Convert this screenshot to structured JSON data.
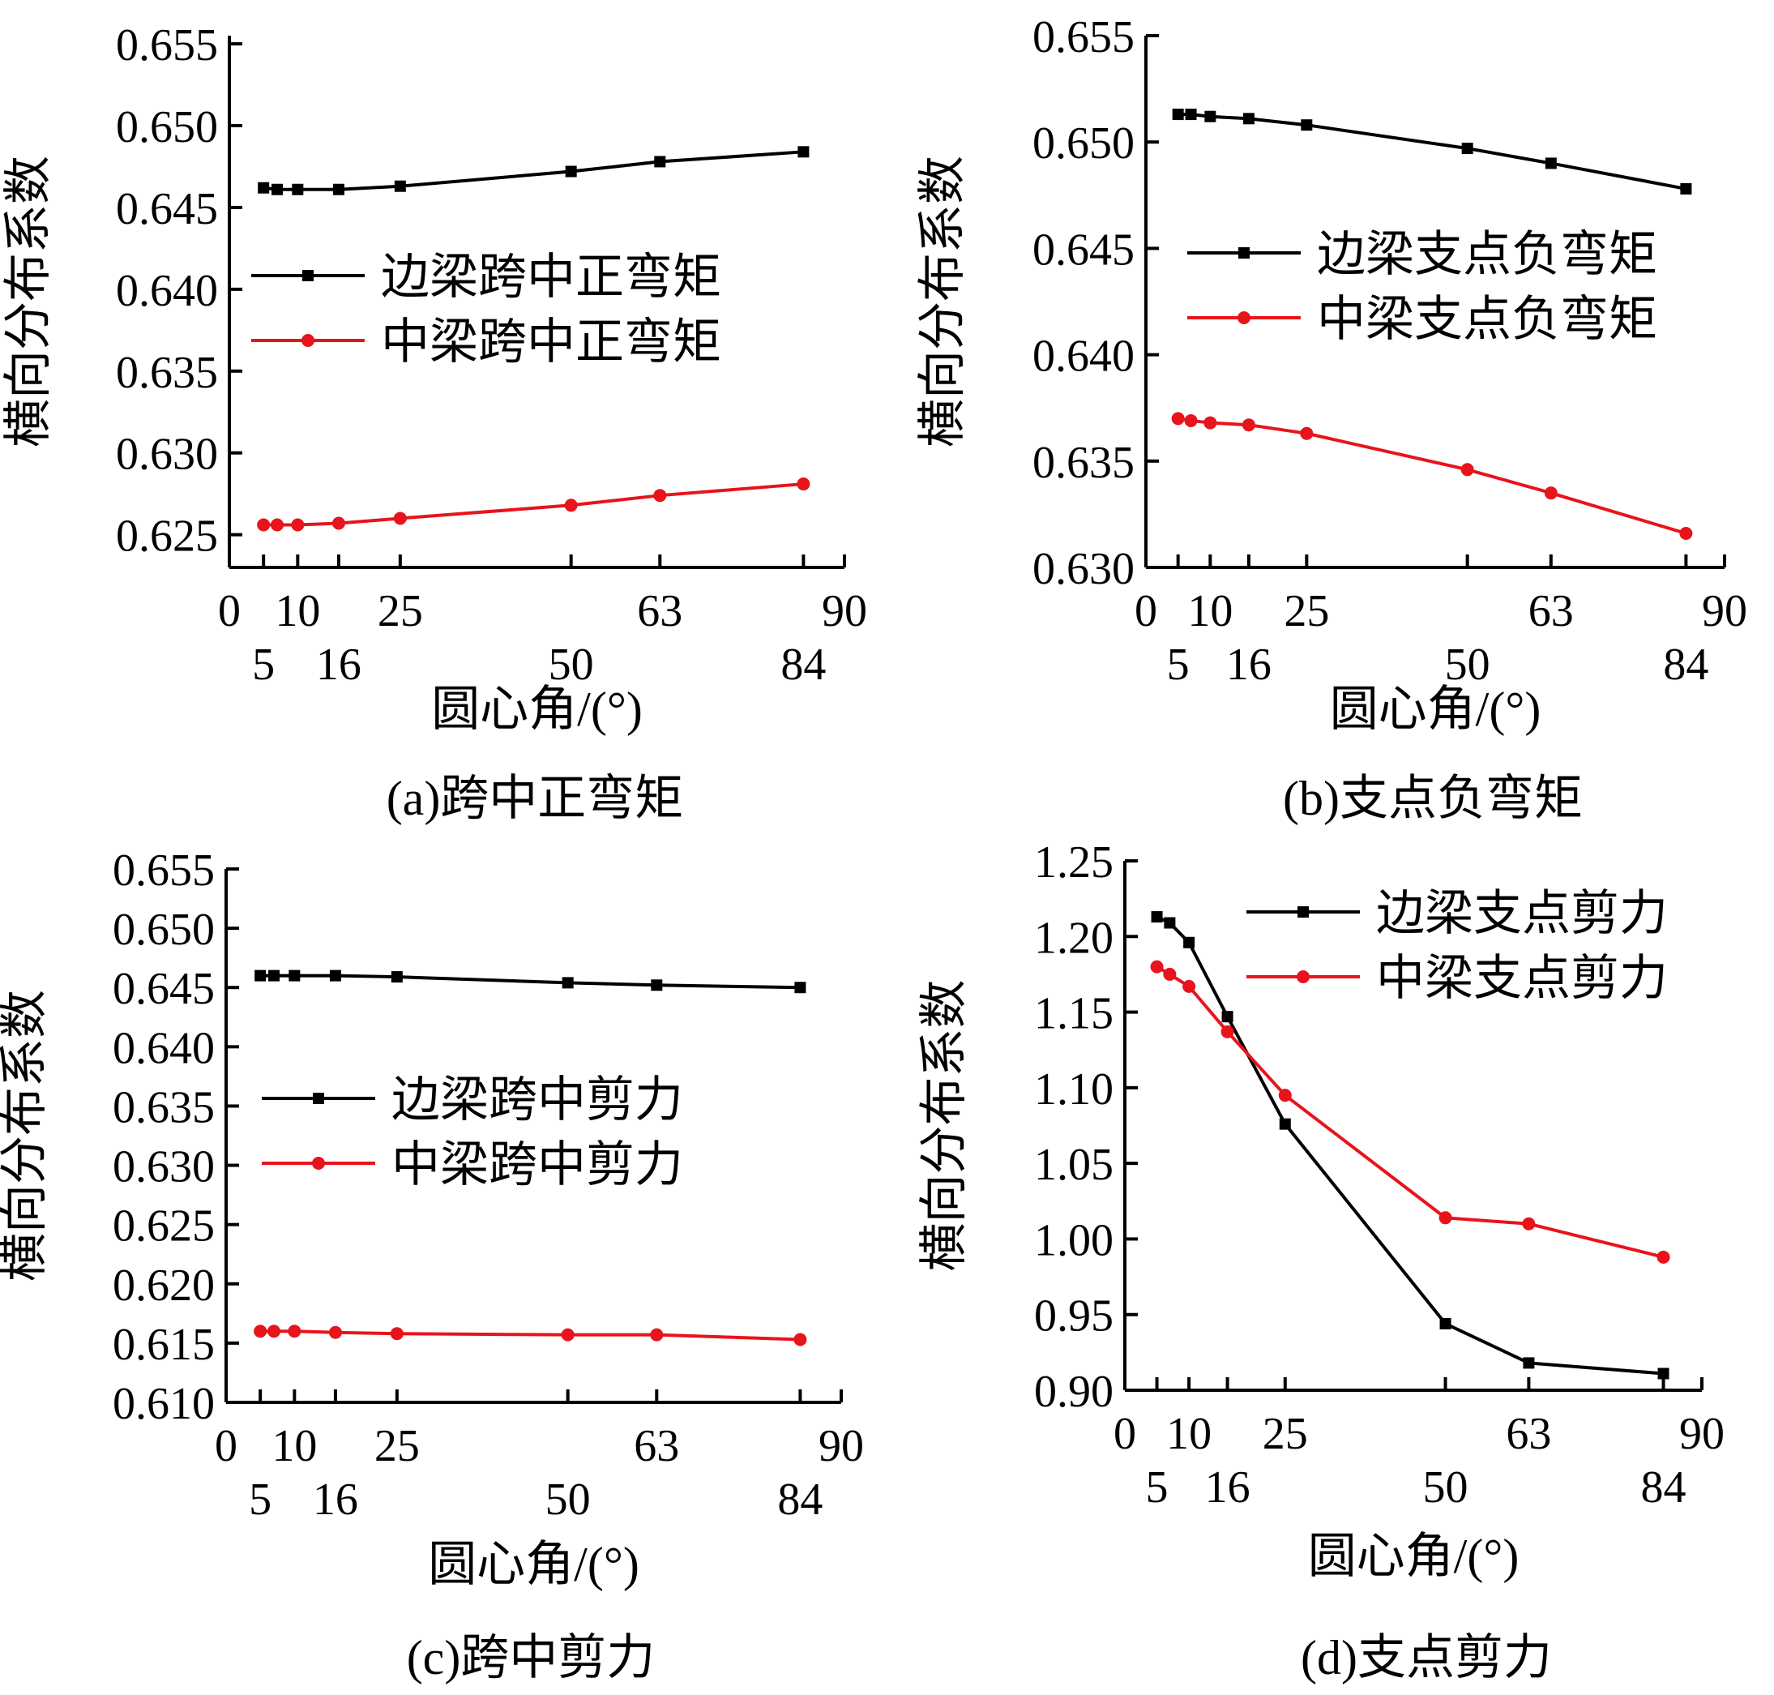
{
  "chart_data": [
    {
      "type": "line",
      "caption": "(a)跨中正弯矩",
      "xlabel": "圆心角/(°)",
      "ylabel": "横向分布系数",
      "x": [
        5,
        7,
        10,
        16,
        25,
        50,
        63,
        84
      ],
      "x_ticks_top": [
        "0",
        "10",
        "25",
        "63",
        "90"
      ],
      "x_ticks_bottom": [
        "5",
        "16",
        "50",
        "84"
      ],
      "y_ticks": [
        "0.625",
        "0.630",
        "0.635",
        "0.640",
        "0.645",
        "0.650",
        "0.655"
      ],
      "ylim": [
        0.623,
        0.6555
      ],
      "xlim": [
        0,
        90
      ],
      "legend_position": "center-left",
      "series": [
        {
          "name": "边梁跨中正弯矩",
          "color": "#000000",
          "marker": "square",
          "values": [
            0.6462,
            0.6461,
            0.6461,
            0.6461,
            0.6463,
            0.6472,
            0.6478,
            0.6484
          ]
        },
        {
          "name": "中梁跨中正弯矩",
          "color": "#e8141b",
          "marker": "circle",
          "values": [
            0.6256,
            0.6256,
            0.6256,
            0.6257,
            0.626,
            0.6268,
            0.6274,
            0.6281
          ]
        }
      ]
    },
    {
      "type": "line",
      "caption": "(b)支点负弯矩",
      "xlabel": "圆心角/(°)",
      "ylabel": "横向分布系数",
      "x": [
        5,
        7,
        10,
        16,
        25,
        50,
        63,
        84
      ],
      "x_ticks_top": [
        "0",
        "10",
        "25",
        "63",
        "90"
      ],
      "x_ticks_bottom": [
        "5",
        "16",
        "50",
        "84"
      ],
      "y_ticks": [
        "0.630",
        "0.635",
        "0.640",
        "0.645",
        "0.650",
        "0.655"
      ],
      "ylim": [
        0.63,
        0.655
      ],
      "xlim": [
        0,
        90
      ],
      "legend_position": "center-right",
      "series": [
        {
          "name": "边梁支点负弯矩",
          "color": "#000000",
          "marker": "square",
          "values": [
            0.6513,
            0.6513,
            0.6512,
            0.6511,
            0.6508,
            0.6497,
            0.649,
            0.6478
          ]
        },
        {
          "name": "中梁支点负弯矩",
          "color": "#e8141b",
          "marker": "circle",
          "values": [
            0.637,
            0.6369,
            0.6368,
            0.6367,
            0.6363,
            0.6346,
            0.6335,
            0.6316
          ]
        }
      ]
    },
    {
      "type": "line",
      "caption": "(c)跨中剪力",
      "xlabel": "圆心角/(°)",
      "ylabel": "横向分布系数",
      "x": [
        5,
        7,
        10,
        16,
        25,
        50,
        63,
        84
      ],
      "x_ticks_top": [
        "0",
        "10",
        "25",
        "63",
        "90"
      ],
      "x_ticks_bottom": [
        "5",
        "16",
        "50",
        "84"
      ],
      "y_ticks": [
        "0.610",
        "0.615",
        "0.620",
        "0.625",
        "0.630",
        "0.635",
        "0.640",
        "0.645",
        "0.650",
        "0.655"
      ],
      "ylim": [
        0.61,
        0.655
      ],
      "xlim": [
        0,
        90
      ],
      "legend_position": "center-right",
      "series": [
        {
          "name": "边梁跨中剪力",
          "color": "#000000",
          "marker": "square",
          "values": [
            0.646,
            0.646,
            0.646,
            0.646,
            0.6459,
            0.6454,
            0.6452,
            0.645
          ]
        },
        {
          "name": "中梁跨中剪力",
          "color": "#e8141b",
          "marker": "circle",
          "values": [
            0.616,
            0.616,
            0.616,
            0.6159,
            0.6158,
            0.6157,
            0.6157,
            0.6153
          ]
        }
      ]
    },
    {
      "type": "line",
      "caption": "(d)支点剪力",
      "xlabel": "圆心角/(°)",
      "ylabel": "横向分布系数",
      "x": [
        5,
        7,
        10,
        16,
        25,
        50,
        63,
        84
      ],
      "x_ticks_top": [
        "0",
        "10",
        "25",
        "63",
        "90"
      ],
      "x_ticks_bottom": [
        "5",
        "16",
        "50",
        "84"
      ],
      "y_ticks": [
        "0.90",
        "0.95",
        "1.00",
        "1.05",
        "1.10",
        "1.15",
        "1.20",
        "1.25"
      ],
      "ylim": [
        0.9,
        1.25
      ],
      "xlim": [
        0,
        90
      ],
      "legend_position": "top-right",
      "series": [
        {
          "name": "边梁支点剪力",
          "color": "#000000",
          "marker": "square",
          "values": [
            1.213,
            1.209,
            1.196,
            1.147,
            1.076,
            0.944,
            0.918,
            0.911
          ]
        },
        {
          "name": "中梁支点剪力",
          "color": "#e8141b",
          "marker": "circle",
          "values": [
            1.18,
            1.175,
            1.167,
            1.137,
            1.095,
            1.014,
            1.01,
            0.988
          ]
        }
      ]
    }
  ]
}
